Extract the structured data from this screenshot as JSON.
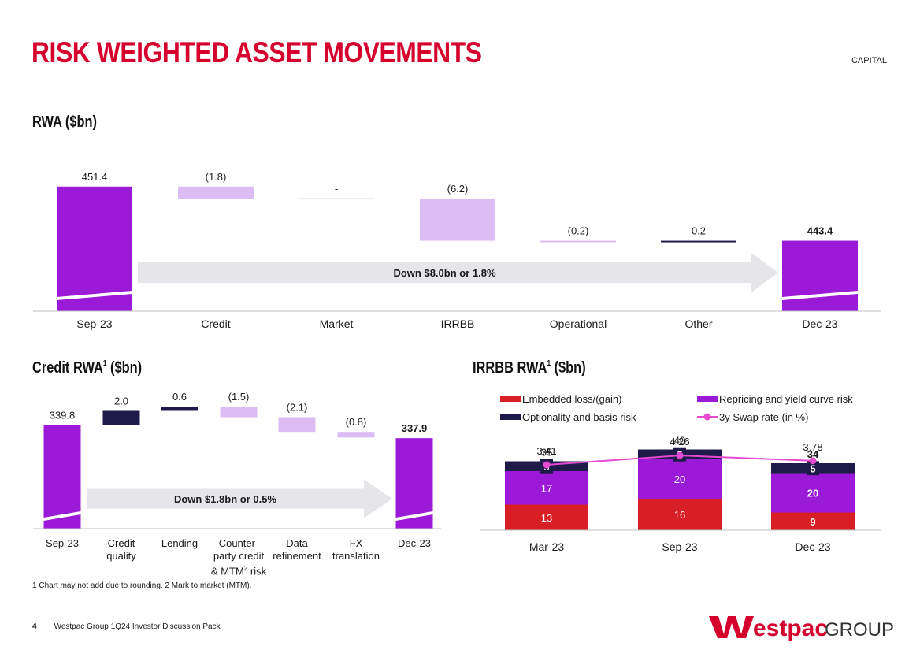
{
  "header": {
    "title": "RISK WEIGHTED ASSET MOVEMENTS",
    "section": "CAPITAL"
  },
  "rwa_title": "RWA ($bn)",
  "credit_title": {
    "text": "Credit RWA",
    "sup": "1",
    "suffix": " ($bn)"
  },
  "irrbb_title": {
    "text": "IRRBB RWA",
    "sup": "1",
    "suffix": " ($bn)"
  },
  "footnote": {
    "n1": "1",
    "t1": " Chart may not add due to rounding. ",
    "n2": "2",
    "t2": " Mark to market (MTM)."
  },
  "footer": {
    "page": "4",
    "text": "Westpac Group 1Q24 Investor Discussion Pack"
  },
  "logo": {
    "brand": "estpac",
    "group": "GROUP"
  },
  "credit_axis_labels": [
    {
      "line1": "Sep-23"
    },
    {
      "line1": "Credit",
      "line2": "quality"
    },
    {
      "line1": "Lending"
    },
    {
      "line1": "Counter-",
      "line2": "party credit",
      "line3a": "& MTM",
      "sup": "2",
      "line3b": " risk"
    },
    {
      "line1": "Data",
      "line2": "refinement"
    },
    {
      "line1": "FX",
      "line2": "translation"
    },
    {
      "line1": "Dec-23"
    }
  ],
  "colors": {
    "total": "#9a1ad8",
    "decrease": "#dcbcf2",
    "increase": "#1e1a4a",
    "embedded": "#d81f26",
    "repricing": "#9a1ad8",
    "optionality": "#1e1a4a",
    "swap": "#e64ad0",
    "arrow": "#e6e6ea",
    "brand_red": "#d5002b"
  },
  "chart_data": [
    {
      "id": "rwa",
      "type": "bar",
      "subtype": "waterfall",
      "title": "RWA ($bn)",
      "categories": [
        "Sep-23",
        "Credit",
        "Market",
        "IRRBB",
        "Operational",
        "Other",
        "Dec-23"
      ],
      "values": [
        451.4,
        -1.8,
        0,
        -6.2,
        -0.2,
        0.2,
        443.4
      ],
      "labels": [
        "451.4",
        "(1.8)",
        "-",
        "(6.2)",
        "(0.2)",
        "0.2",
        "443.4"
      ],
      "kinds": [
        "total",
        "decrease",
        "flat",
        "decrease",
        "decrease",
        "increase",
        "total"
      ],
      "annotation": "Down $8.0bn or 1.8%"
    },
    {
      "id": "credit",
      "type": "bar",
      "subtype": "waterfall",
      "title": "Credit RWA ($bn)",
      "categories": [
        "Sep-23",
        "Credit quality",
        "Lending",
        "Counter-party credit & MTM risk",
        "Data refinement",
        "FX translation",
        "Dec-23"
      ],
      "values": [
        339.8,
        2.0,
        0.6,
        -1.5,
        -2.1,
        -0.8,
        337.9
      ],
      "labels": [
        "339.8",
        "2.0",
        "0.6",
        "(1.5)",
        "(2.1)",
        "(0.8)",
        "337.9"
      ],
      "kinds": [
        "total",
        "increase",
        "increase",
        "decrease",
        "decrease",
        "decrease",
        "total"
      ],
      "annotation": "Down $1.8bn or 0.5%"
    },
    {
      "id": "irrbb",
      "type": "bar",
      "subtype": "stacked_with_line",
      "title": "IRRBB RWA ($bn)",
      "categories": [
        "Mar-23",
        "Sep-23",
        "Dec-23"
      ],
      "series": [
        {
          "name": "Embedded loss/(gain)",
          "key": "embedded",
          "values": [
            13,
            16,
            9
          ]
        },
        {
          "name": "Repricing and yield curve risk",
          "key": "repricing",
          "values": [
            17,
            20,
            20
          ]
        },
        {
          "name": "Optionality and basis risk",
          "key": "optionality",
          "values": [
            5,
            5,
            5
          ]
        }
      ],
      "totals": [
        35,
        40,
        34
      ],
      "line": {
        "name": "3y Swap rate (in %)",
        "values": [
          3.41,
          4.26,
          3.78
        ],
        "labels": [
          "3.41",
          "4.26",
          "3.78"
        ]
      },
      "bold_last": true
    }
  ]
}
